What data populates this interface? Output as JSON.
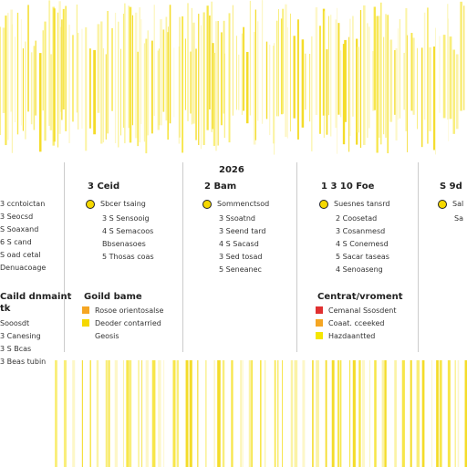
{
  "header": {
    "year": "2026"
  },
  "columns": [
    {
      "title": null,
      "items": [
        "3 ccntoictan",
        "3 Seocsd",
        "S Soaxand",
        "6 S cand",
        "S oad cetal",
        "Denuacoage"
      ],
      "heading": "Caild dnmaint",
      "subheading": "tk",
      "legend": [
        "Sooosdt",
        "3 Canesing",
        "3 S Bcas",
        "3 Beas tubin"
      ]
    },
    {
      "title": "3 Ceid",
      "items": [
        "Sbcer tsaing",
        "3 S Sensooig",
        "4 S Semacoos",
        "Bbsenasoes",
        "5 Thosas coas"
      ],
      "heading": "Goild bame",
      "legend": [
        "Rosoe orientosalse",
        "Deoder contarried",
        "Geosis"
      ]
    },
    {
      "title": "2 Bam",
      "items": [
        "Sommenctsod",
        "3 Ssoatnd",
        "3 Seend tard",
        "4 S Sacasd",
        "3 Sed tosad",
        "5 Seneanec"
      ]
    },
    {
      "title": "1 3 10 Foe",
      "items": [
        "Suesnes tansrd",
        "2 Coosetad",
        "3 Cosanmesd",
        "4 S Conemesd",
        "5 Sacar taseas",
        "4 Senoaseng"
      ],
      "heading": "Centrat/vroment",
      "legend": [
        "Cemanal Ssosdent",
        "Coaat. cceeked",
        "Hazdaantted"
      ]
    },
    {
      "title": "S 9d",
      "items": [
        "Sal",
        "Sa"
      ]
    }
  ]
}
